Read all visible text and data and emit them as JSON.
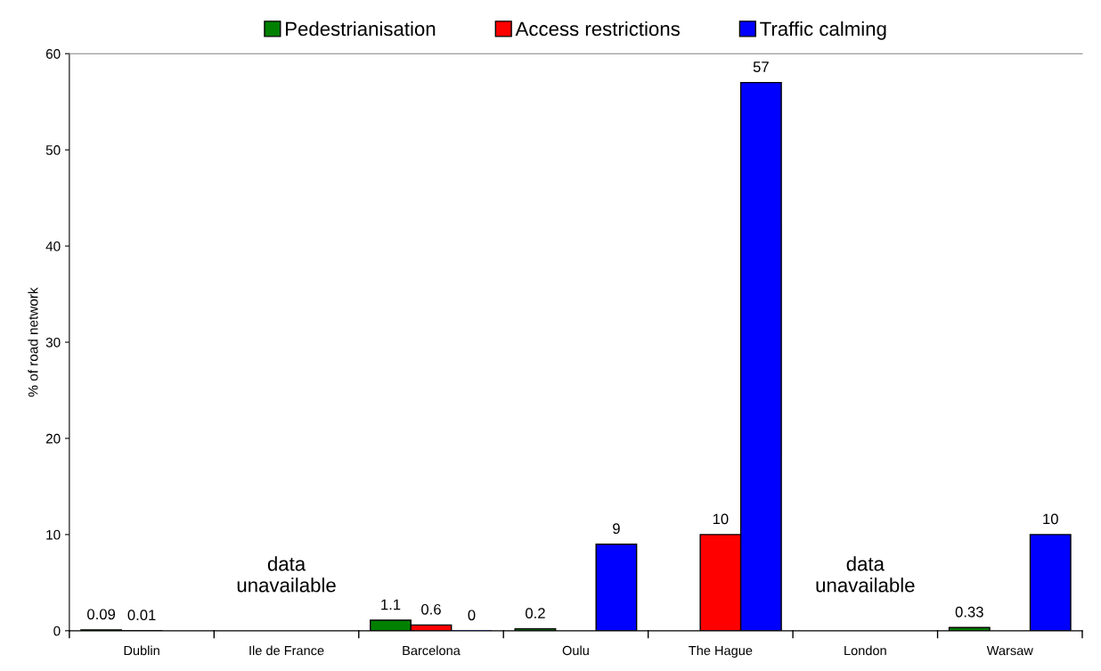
{
  "chart_data": {
    "type": "bar",
    "ylabel": "% of road network",
    "categories": [
      "Dublin",
      "Ile de France",
      "Barcelona",
      "Oulu",
      "The Hague",
      "London",
      "Warsaw"
    ],
    "series": [
      {
        "name": "Pedestrianisation",
        "color": "#008000",
        "values": [
          0.09,
          null,
          1.1,
          0.2,
          null,
          null,
          0.33
        ],
        "value_labels": [
          "0.09",
          null,
          "1.1",
          "0.2",
          null,
          null,
          "0.33"
        ]
      },
      {
        "name": "Access restrictions",
        "color": "#ff0000",
        "values": [
          0.01,
          null,
          0.6,
          null,
          10,
          null,
          null
        ],
        "value_labels": [
          "0.01",
          null,
          "0.6",
          null,
          "10",
          null,
          null
        ]
      },
      {
        "name": "Traffic calming",
        "color": "#0000ff",
        "values": [
          null,
          null,
          0,
          9,
          57,
          null,
          10
        ],
        "value_labels": [
          null,
          null,
          "0",
          "9",
          "57",
          null,
          "10"
        ]
      }
    ],
    "ylim": [
      0,
      60
    ],
    "yticks": [
      0,
      10,
      20,
      30,
      40,
      50,
      60
    ],
    "annotations": [
      "data\nunavailable",
      "data\nunavailable"
    ],
    "legend": "top",
    "grid": false
  }
}
